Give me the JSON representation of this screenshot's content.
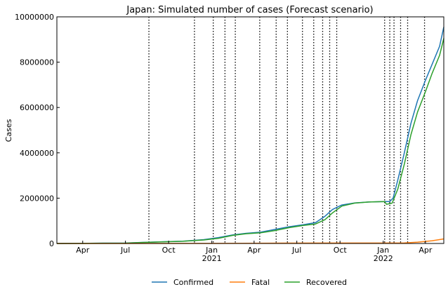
{
  "chart_data": {
    "type": "line",
    "title": "Japan: Simulated number of cases (Forecast scenario)",
    "xlabel": "",
    "ylabel": "Cases",
    "ylim": [
      0,
      10000000
    ],
    "yticks": [
      0,
      2000000,
      4000000,
      6000000,
      8000000,
      10000000
    ],
    "ytick_labels": [
      "0",
      "2000000",
      "4000000",
      "6000000",
      "8000000",
      "10000000"
    ],
    "xlim": [
      "2020-02-06",
      "2022-05-10"
    ],
    "xticks": [
      {
        "date": "2020-04-01",
        "label": "Apr",
        "year": ""
      },
      {
        "date": "2020-07-01",
        "label": "Jul",
        "year": ""
      },
      {
        "date": "2020-10-01",
        "label": "Oct",
        "year": ""
      },
      {
        "date": "2021-01-01",
        "label": "Jan",
        "year": "2021"
      },
      {
        "date": "2021-04-01",
        "label": "Apr",
        "year": ""
      },
      {
        "date": "2021-07-01",
        "label": "Jul",
        "year": ""
      },
      {
        "date": "2021-10-01",
        "label": "Oct",
        "year": ""
      },
      {
        "date": "2022-01-01",
        "label": "Jan",
        "year": "2022"
      },
      {
        "date": "2022-04-01",
        "label": "Apr",
        "year": ""
      }
    ],
    "vlines": [
      "2020-08-20",
      "2020-11-25",
      "2021-01-04",
      "2021-01-29",
      "2021-02-20",
      "2021-04-13",
      "2021-05-18",
      "2021-06-11",
      "2021-07-13",
      "2021-08-06",
      "2021-08-25",
      "2021-09-09",
      "2021-09-24",
      "2022-01-04",
      "2022-01-15",
      "2022-01-24",
      "2022-02-07",
      "2022-02-22",
      "2022-03-30"
    ],
    "legend_position": "bottom-center",
    "series": [
      {
        "name": "Confirmed",
        "color": "#1f77b4",
        "points": [
          [
            "2020-02-06",
            0
          ],
          [
            "2020-04-01",
            5000
          ],
          [
            "2020-05-15",
            15000
          ],
          [
            "2020-07-01",
            20000
          ],
          [
            "2020-08-10",
            50000
          ],
          [
            "2020-09-15",
            75000
          ],
          [
            "2020-10-31",
            100000
          ],
          [
            "2020-12-15",
            170000
          ],
          [
            "2021-01-15",
            260000
          ],
          [
            "2021-02-15",
            380000
          ],
          [
            "2021-03-15",
            450000
          ],
          [
            "2021-04-15",
            500000
          ],
          [
            "2021-05-15",
            620000
          ],
          [
            "2021-06-15",
            740000
          ],
          [
            "2021-07-15",
            830000
          ],
          [
            "2021-08-10",
            920000
          ],
          [
            "2021-08-30",
            1200000
          ],
          [
            "2021-09-15",
            1500000
          ],
          [
            "2021-10-05",
            1700000
          ],
          [
            "2021-11-01",
            1790000
          ],
          [
            "2021-12-01",
            1830000
          ],
          [
            "2022-01-04",
            1850000
          ],
          [
            "2022-01-15",
            1850000
          ],
          [
            "2022-01-22",
            2000000
          ],
          [
            "2022-02-01",
            2800000
          ],
          [
            "2022-02-15",
            4000000
          ],
          [
            "2022-03-01",
            5300000
          ],
          [
            "2022-03-15",
            6300000
          ],
          [
            "2022-04-01",
            7200000
          ],
          [
            "2022-04-15",
            7900000
          ],
          [
            "2022-05-01",
            8700000
          ],
          [
            "2022-05-10",
            9550000
          ]
        ]
      },
      {
        "name": "Fatal",
        "color": "#ff7f0e",
        "points": [
          [
            "2020-02-06",
            0
          ],
          [
            "2021-01-01",
            3000
          ],
          [
            "2021-06-01",
            14000
          ],
          [
            "2021-10-01",
            18000
          ],
          [
            "2022-01-01",
            18500
          ],
          [
            "2022-02-15",
            25000
          ],
          [
            "2022-03-15",
            60000
          ],
          [
            "2022-04-15",
            120000
          ],
          [
            "2022-05-10",
            200000
          ]
        ]
      },
      {
        "name": "Recovered",
        "color": "#2ca02c",
        "points": [
          [
            "2020-02-06",
            0
          ],
          [
            "2020-04-01",
            3000
          ],
          [
            "2020-05-15",
            12000
          ],
          [
            "2020-07-01",
            17000
          ],
          [
            "2020-08-10",
            45000
          ],
          [
            "2020-09-15",
            70000
          ],
          [
            "2020-10-31",
            95000
          ],
          [
            "2020-12-15",
            155000
          ],
          [
            "2021-01-15",
            230000
          ],
          [
            "2021-02-15",
            360000
          ],
          [
            "2021-03-15",
            430000
          ],
          [
            "2021-04-15",
            470000
          ],
          [
            "2021-05-15",
            570000
          ],
          [
            "2021-06-15",
            700000
          ],
          [
            "2021-07-15",
            800000
          ],
          [
            "2021-08-10",
            860000
          ],
          [
            "2021-08-30",
            1050000
          ],
          [
            "2021-09-15",
            1350000
          ],
          [
            "2021-10-05",
            1650000
          ],
          [
            "2021-11-01",
            1780000
          ],
          [
            "2021-12-01",
            1830000
          ],
          [
            "2022-01-04",
            1850000
          ],
          [
            "2022-01-08",
            1730000
          ],
          [
            "2022-01-20",
            1780000
          ],
          [
            "2022-02-01",
            2400000
          ],
          [
            "2022-02-15",
            3500000
          ],
          [
            "2022-03-01",
            4800000
          ],
          [
            "2022-03-15",
            5800000
          ],
          [
            "2022-04-01",
            6700000
          ],
          [
            "2022-04-15",
            7500000
          ],
          [
            "2022-05-01",
            8300000
          ],
          [
            "2022-05-10",
            9050000
          ]
        ]
      }
    ]
  }
}
